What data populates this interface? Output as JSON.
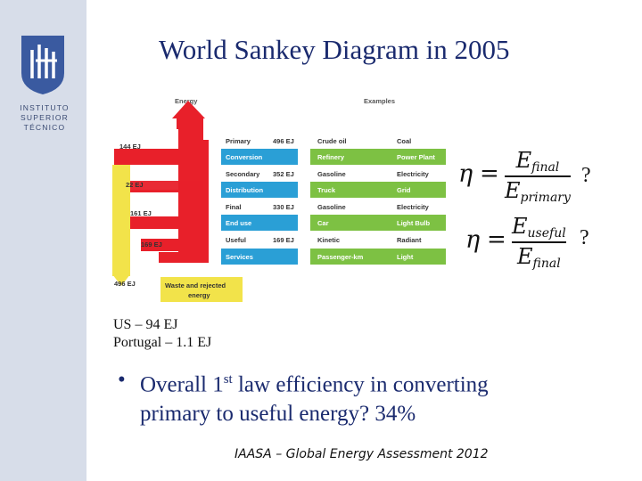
{
  "title": "World Sankey Diagram in 2005",
  "logo": {
    "name": "ist-logo",
    "lines": [
      "INSTITUTO",
      "SUPERIOR",
      "TÉCNICO"
    ]
  },
  "diagram": {
    "energy_header": "Energy",
    "examples_header": "Examples",
    "colors": {
      "primary_flow": "#e8202a",
      "rejected_flow": "#f2e34a",
      "stage_box": "#2a9fd6",
      "example_box": "#7dc143",
      "rejected_box": "#f2e34a"
    },
    "left_labels": [
      "144 EJ",
      "22 EJ",
      "161 EJ",
      "169 EJ",
      "496 EJ"
    ],
    "stages": [
      {
        "name": "Primary",
        "value": "496 EJ",
        "ex1": "Crude oil",
        "ex2": "Coal"
      },
      {
        "name": "Conversion",
        "value": "",
        "ex1": "Refinery",
        "ex2": "Power Plant"
      },
      {
        "name": "Secondary",
        "value": "352 EJ",
        "ex1": "Gasoline",
        "ex2": "Electricity"
      },
      {
        "name": "Distribution",
        "value": "",
        "ex1": "Truck",
        "ex2": "Grid"
      },
      {
        "name": "Final",
        "value": "330 EJ",
        "ex1": "Gasoline",
        "ex2": "Electricity"
      },
      {
        "name": "End use",
        "value": "",
        "ex1": "Car",
        "ex2": "Light Bulb"
      },
      {
        "name": "Useful",
        "value": "169 EJ",
        "ex1": "Kinetic",
        "ex2": "Radiant"
      },
      {
        "name": "Services",
        "value": "",
        "ex1": "Passenger-km",
        "ex2": "Light"
      }
    ],
    "rejected_label_1": "Waste and rejected",
    "rejected_label_2": "energy"
  },
  "equations": {
    "eta": "η",
    "equals": "=",
    "eq1": {
      "num": "E",
      "num_sub": "final",
      "den": "E",
      "den_sub": "primary",
      "q": "?"
    },
    "eq2": {
      "num": "E",
      "num_sub": "useful",
      "den": "E",
      "den_sub": "final",
      "q": "?"
    }
  },
  "stats": {
    "us": "US – 94 EJ",
    "portugal": "Portugal – 1.1 EJ"
  },
  "bullet": {
    "dot": "•",
    "pre": "Overall 1",
    "sup": "st",
    "post": " law efficiency in converting",
    "line2": "primary to useful energy?  34%"
  },
  "source": "IAASA – Global Energy Assessment 2012"
}
